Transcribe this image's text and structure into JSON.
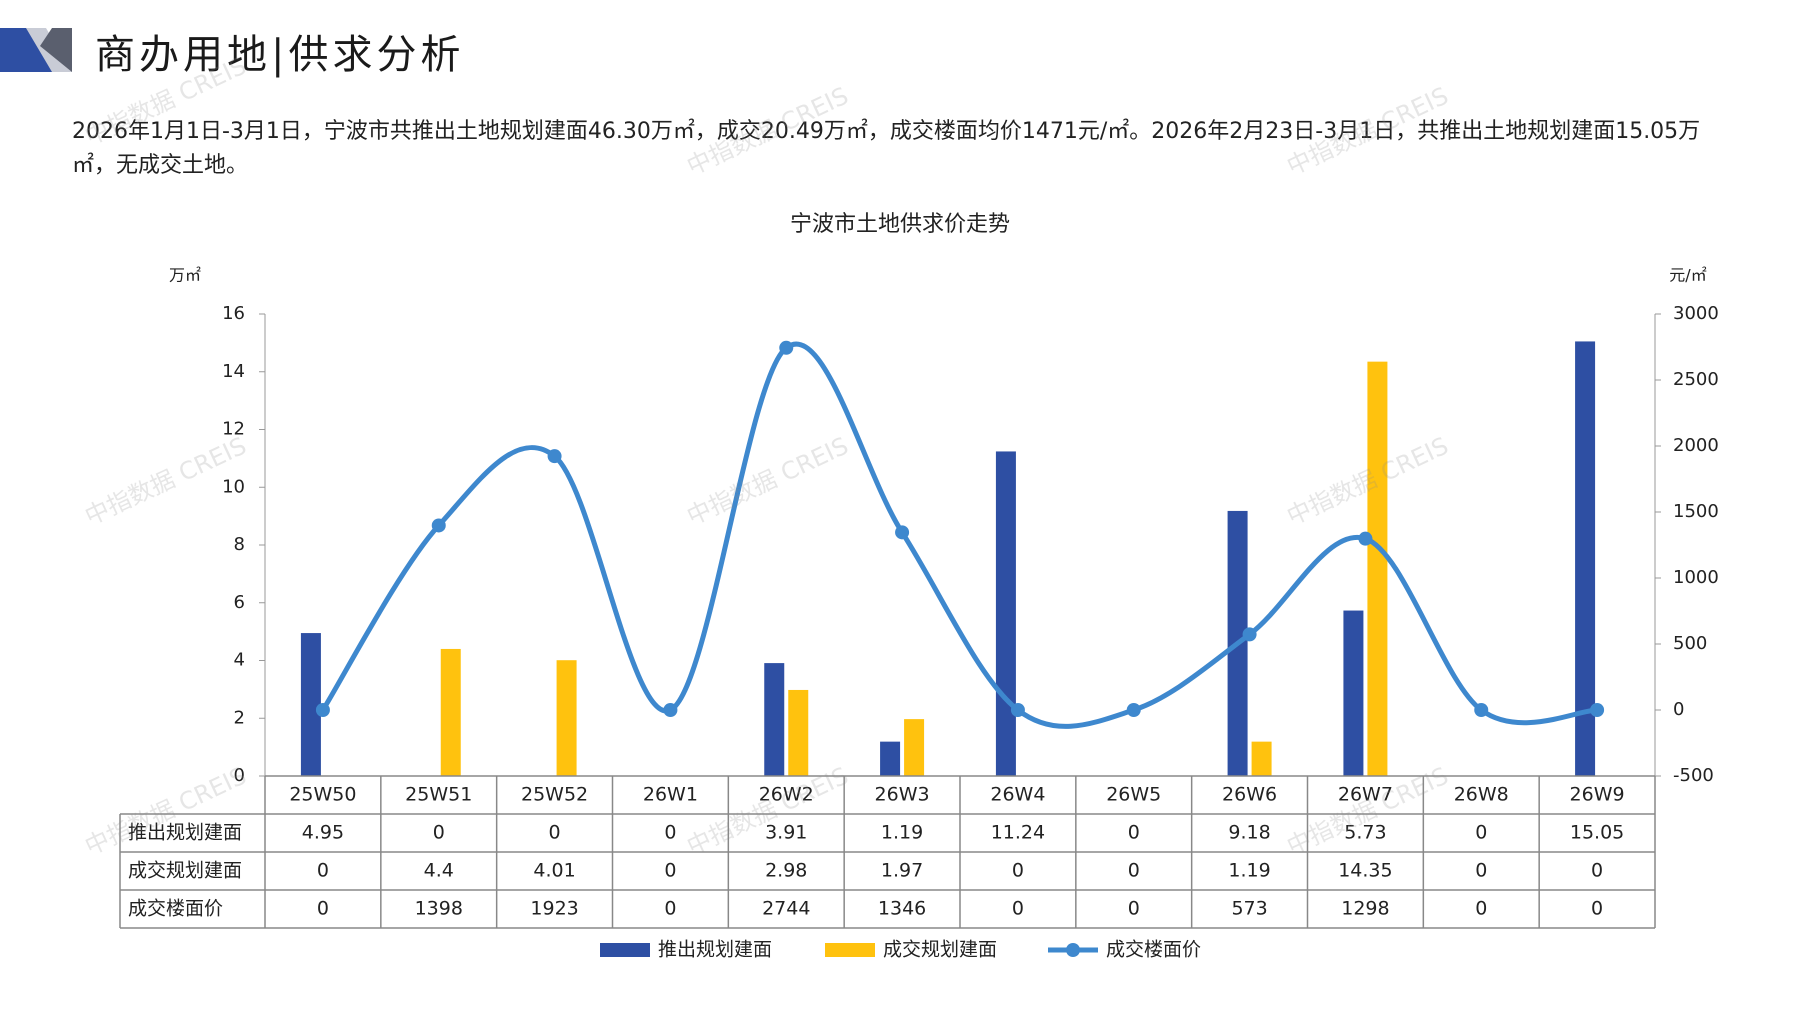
{
  "page": {
    "title": "商办用地|供求分析",
    "summary": "2026年1月1日-3月1日，宁波市共推出土地规划建面46.30万㎡，成交20.49万㎡，成交楼面均价1471元/㎡。2026年2月23日-3月1日，共推出土地规划建面15.05万㎡，无成交土地。",
    "watermark": "中指数据 CREIS"
  },
  "colors": {
    "supply": "#2E4FA3",
    "deal": "#FFC20E",
    "price": "#3E88CE",
    "axis": "#999999",
    "grid": "#888888"
  },
  "chart_data": {
    "type": "bar",
    "title": "宁波市土地供求价走势",
    "y_left_unit": "万㎡",
    "y_right_unit": "元/㎡",
    "ylim_left": [
      0,
      16
    ],
    "ylim_right": [
      -500,
      3000
    ],
    "left_ticks": [
      "0",
      "2",
      "4",
      "6",
      "8",
      "10",
      "12",
      "14",
      "16"
    ],
    "right_ticks": [
      "-500",
      "0",
      "500",
      "1000",
      "1500",
      "2000",
      "2500",
      "3000"
    ],
    "categories": [
      "25W50",
      "25W51",
      "25W52",
      "26W1",
      "26W2",
      "26W3",
      "26W4",
      "26W5",
      "26W6",
      "26W7",
      "26W8",
      "26W9"
    ],
    "series": [
      {
        "name": "推出规划建面",
        "type": "bar",
        "axis": "left",
        "values": [
          4.95,
          0,
          0,
          0,
          3.91,
          1.19,
          11.24,
          0,
          9.18,
          5.73,
          0,
          15.05
        ],
        "labels": [
          "4.95",
          "0",
          "0",
          "0",
          "3.91",
          "1.19",
          "11.24",
          "0",
          "9.18",
          "5.73",
          "0",
          "15.05"
        ]
      },
      {
        "name": "成交规划建面",
        "type": "bar",
        "axis": "left",
        "values": [
          0,
          4.4,
          4.01,
          0,
          2.98,
          1.97,
          0,
          0,
          1.19,
          14.35,
          0,
          0
        ],
        "labels": [
          "0",
          "4.4",
          "4.01",
          "0",
          "2.98",
          "1.97",
          "0",
          "0",
          "1.19",
          "14.35",
          "0",
          "0"
        ]
      },
      {
        "name": "成交楼面价",
        "type": "line",
        "axis": "right",
        "values": [
          0,
          1398,
          1923,
          0,
          2744,
          1346,
          0,
          0,
          573,
          1298,
          0,
          0
        ],
        "labels": [
          "0",
          "1398",
          "1923",
          "0",
          "2744",
          "1346",
          "0",
          "0",
          "573",
          "1298",
          "0",
          "0"
        ]
      }
    ],
    "legend_position": "bottom",
    "grid": false
  }
}
